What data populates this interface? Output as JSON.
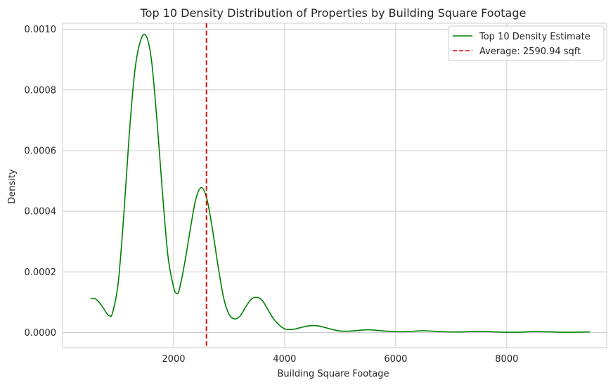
{
  "chart_data": {
    "type": "line",
    "title": "Top 10 Density Distribution of Properties by Building Square Footage",
    "xlabel": "Building Square Footage",
    "ylabel": "Density",
    "xlim": [
      0,
      9800
    ],
    "ylim": [
      -5e-05,
      0.00102
    ],
    "grid": true,
    "legend_position": "top-right",
    "x_ticks": [
      {
        "value": 2000,
        "label": "2000"
      },
      {
        "value": 4000,
        "label": "4000"
      },
      {
        "value": 6000,
        "label": "6000"
      },
      {
        "value": 8000,
        "label": "8000"
      }
    ],
    "y_ticks": [
      {
        "value": 0.0,
        "label": "0.0000"
      },
      {
        "value": 0.0002,
        "label": "0.0002"
      },
      {
        "value": 0.0004,
        "label": "0.0004"
      },
      {
        "value": 0.0006,
        "label": "0.0006"
      },
      {
        "value": 0.0008,
        "label": "0.0008"
      },
      {
        "value": 0.001,
        "label": "0.0010"
      }
    ],
    "series": [
      {
        "name": "Top 10 Density Estimate",
        "color": "#008000",
        "style": "solid",
        "x": [
          500,
          600,
          700,
          800,
          850,
          900,
          1000,
          1100,
          1200,
          1300,
          1400,
          1500,
          1600,
          1700,
          1800,
          1900,
          2000,
          2050,
          2100,
          2200,
          2300,
          2400,
          2500,
          2600,
          2700,
          2800,
          2900,
          3000,
          3100,
          3200,
          3300,
          3400,
          3500,
          3600,
          3700,
          3800,
          3900,
          4000,
          4100,
          4200,
          4300,
          4400,
          4500,
          4600,
          4700,
          4800,
          5000,
          5200,
          5500,
          5800,
          6000,
          6200,
          6500,
          6800,
          7000,
          7200,
          7500,
          7800,
          8000,
          8200,
          8500,
          8800,
          9000,
          9200,
          9500
        ],
        "y": [
          0.000113,
          0.00011,
          9e-05,
          6.2e-05,
          5.5e-05,
          6.5e-05,
          0.00016,
          0.00038,
          0.00065,
          0.00086,
          0.00096,
          0.00098,
          0.0009,
          0.0007,
          0.00046,
          0.00025,
          0.00015,
          0.00013,
          0.00014,
          0.00023,
          0.00034,
          0.00044,
          0.000478,
          0.00044,
          0.00034,
          0.00022,
          0.000115,
          6e-05,
          4.5e-05,
          5.5e-05,
          8.5e-05,
          0.00011,
          0.000116,
          0.000105,
          7.5e-05,
          4.5e-05,
          2.5e-05,
          1.2e-05,
          1e-05,
          1.2e-05,
          1.7e-05,
          2.1e-05,
          2.3e-05,
          2.2e-05,
          1.8e-05,
          1.3e-05,
          5e-06,
          5e-06,
          9e-06,
          5e-06,
          3e-06,
          3e-06,
          6e-06,
          3e-06,
          2e-06,
          2e-06,
          4e-06,
          2e-06,
          1e-06,
          1e-06,
          3e-06,
          2e-06,
          1e-06,
          1e-06,
          2e-06
        ]
      }
    ],
    "reference_lines": [
      {
        "name": "Average: 2590.94 sqft",
        "orientation": "vertical",
        "x": 2590.94,
        "color": "#e00000",
        "style": "dashed"
      }
    ]
  }
}
